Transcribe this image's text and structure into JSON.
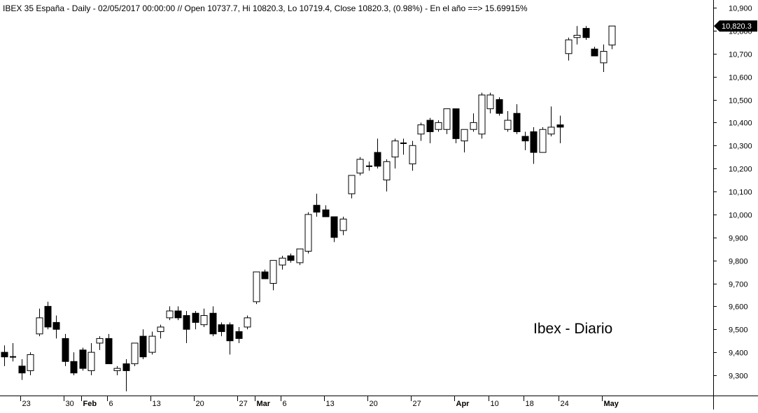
{
  "chart_data": {
    "type": "candlestick",
    "header": "IBEX 35 España - Daily - 02/05/2017 00:00:00 // Open 10737.7, Hi 10820.3, Lo 10719.4, Close 10820.3, (0.98%) - En el año ==> 15.69915%",
    "annotation": "Ibex - Diario",
    "last_value_label": "10,820.3",
    "last_value": 10820.3,
    "ylim": [
      9230,
      10920
    ],
    "y_ticks": [
      {
        "value": 9300,
        "label": "9,300"
      },
      {
        "value": 9400,
        "label": "9,400"
      },
      {
        "value": 9500,
        "label": "9,500"
      },
      {
        "value": 9600,
        "label": "9,600"
      },
      {
        "value": 9700,
        "label": "9,700"
      },
      {
        "value": 9800,
        "label": "9,800"
      },
      {
        "value": 9900,
        "label": "9,900"
      },
      {
        "value": 10000,
        "label": "10,000"
      },
      {
        "value": 10100,
        "label": "10,100"
      },
      {
        "value": 10200,
        "label": "10,200"
      },
      {
        "value": 10300,
        "label": "10,300"
      },
      {
        "value": 10400,
        "label": "10,400"
      },
      {
        "value": 10500,
        "label": "10,500"
      },
      {
        "value": 10600,
        "label": "10,600"
      },
      {
        "value": 10700,
        "label": "10,700"
      },
      {
        "value": 10800,
        "label": "10,800"
      },
      {
        "value": 10900,
        "label": "10,900"
      }
    ],
    "x_ticks": [
      {
        "index": 2,
        "label": "23",
        "bold": false
      },
      {
        "index": 7,
        "label": "30",
        "bold": false
      },
      {
        "index": 9,
        "label": "Feb",
        "bold": true
      },
      {
        "index": 12,
        "label": "6",
        "bold": false
      },
      {
        "index": 17,
        "label": "13",
        "bold": false
      },
      {
        "index": 22,
        "label": "20",
        "bold": false
      },
      {
        "index": 27,
        "label": "27",
        "bold": false
      },
      {
        "index": 29,
        "label": "Mar",
        "bold": true
      },
      {
        "index": 32,
        "label": "6",
        "bold": false
      },
      {
        "index": 37,
        "label": "13",
        "bold": false
      },
      {
        "index": 42,
        "label": "20",
        "bold": false
      },
      {
        "index": 47,
        "label": "27",
        "bold": false
      },
      {
        "index": 52,
        "label": "Apr",
        "bold": true
      },
      {
        "index": 56,
        "label": "10",
        "bold": false
      },
      {
        "index": 60,
        "label": "18",
        "bold": false
      },
      {
        "index": 64,
        "label": "24",
        "bold": false
      },
      {
        "index": 69,
        "label": "May",
        "bold": true
      }
    ],
    "candles": [
      {
        "open": 9400,
        "high": 9430,
        "low": 9340,
        "close": 9380
      },
      {
        "open": 9380,
        "high": 9440,
        "low": 9360,
        "close": 9380
      },
      {
        "open": 9340,
        "high": 9370,
        "low": 9280,
        "close": 9310
      },
      {
        "open": 9320,
        "high": 9400,
        "low": 9300,
        "close": 9390
      },
      {
        "open": 9480,
        "high": 9590,
        "low": 9470,
        "close": 9550
      },
      {
        "open": 9600,
        "high": 9620,
        "low": 9500,
        "close": 9510
      },
      {
        "open": 9530,
        "high": 9560,
        "low": 9460,
        "close": 9500
      },
      {
        "open": 9460,
        "high": 9480,
        "low": 9340,
        "close": 9360
      },
      {
        "open": 9360,
        "high": 9400,
        "low": 9300,
        "close": 9310
      },
      {
        "open": 9410,
        "high": 9420,
        "low": 9320,
        "close": 9330
      },
      {
        "open": 9320,
        "high": 9440,
        "low": 9300,
        "close": 9400
      },
      {
        "open": 9440,
        "high": 9470,
        "low": 9410,
        "close": 9460
      },
      {
        "open": 9460,
        "high": 9480,
        "low": 9360,
        "close": 9350
      },
      {
        "open": 9320,
        "high": 9340,
        "low": 9300,
        "close": 9330
      },
      {
        "open": 9350,
        "high": 9370,
        "low": 9230,
        "close": 9320
      },
      {
        "open": 9350,
        "high": 9440,
        "low": 9340,
        "close": 9440
      },
      {
        "open": 9470,
        "high": 9500,
        "low": 9370,
        "close": 9380
      },
      {
        "open": 9400,
        "high": 9490,
        "low": 9390,
        "close": 9470
      },
      {
        "open": 9490,
        "high": 9520,
        "low": 9460,
        "close": 9510
      },
      {
        "open": 9550,
        "high": 9600,
        "low": 9540,
        "close": 9580
      },
      {
        "open": 9580,
        "high": 9600,
        "low": 9540,
        "close": 9550
      },
      {
        "open": 9560,
        "high": 9580,
        "low": 9440,
        "close": 9500
      },
      {
        "open": 9570,
        "high": 9580,
        "low": 9500,
        "close": 9530
      },
      {
        "open": 9520,
        "high": 9590,
        "low": 9510,
        "close": 9560
      },
      {
        "open": 9570,
        "high": 9600,
        "low": 9470,
        "close": 9480
      },
      {
        "open": 9520,
        "high": 9530,
        "low": 9470,
        "close": 9490
      },
      {
        "open": 9520,
        "high": 9530,
        "low": 9390,
        "close": 9450
      },
      {
        "open": 9490,
        "high": 9510,
        "low": 9440,
        "close": 9460
      },
      {
        "open": 9510,
        "high": 9560,
        "low": 9500,
        "close": 9550
      },
      {
        "open": 9620,
        "high": 9750,
        "low": 9610,
        "close": 9750
      },
      {
        "open": 9750,
        "high": 9760,
        "low": 9720,
        "close": 9720
      },
      {
        "open": 9700,
        "high": 9800,
        "low": 9670,
        "close": 9800
      },
      {
        "open": 9780,
        "high": 9820,
        "low": 9760,
        "close": 9810
      },
      {
        "open": 9820,
        "high": 9830,
        "low": 9790,
        "close": 9800
      },
      {
        "open": 9790,
        "high": 9850,
        "low": 9780,
        "close": 9850
      },
      {
        "open": 9840,
        "high": 10010,
        "low": 9830,
        "close": 10000
      },
      {
        "open": 10040,
        "high": 10090,
        "low": 9990,
        "close": 10010
      },
      {
        "open": 10020,
        "high": 10040,
        "low": 9990,
        "close": 9990
      },
      {
        "open": 9990,
        "high": 9990,
        "low": 9880,
        "close": 9900
      },
      {
        "open": 9930,
        "high": 9990,
        "low": 9910,
        "close": 9980
      },
      {
        "open": 10090,
        "high": 10170,
        "low": 10070,
        "close": 10170
      },
      {
        "open": 10180,
        "high": 10250,
        "low": 10170,
        "close": 10240
      },
      {
        "open": 10210,
        "high": 10230,
        "low": 10190,
        "close": 10210
      },
      {
        "open": 10270,
        "high": 10330,
        "low": 10200,
        "close": 10210
      },
      {
        "open": 10150,
        "high": 10240,
        "low": 10100,
        "close": 10230
      },
      {
        "open": 10250,
        "high": 10330,
        "low": 10200,
        "close": 10320
      },
      {
        "open": 10310,
        "high": 10330,
        "low": 10260,
        "close": 10310
      },
      {
        "open": 10220,
        "high": 10320,
        "low": 10190,
        "close": 10300
      },
      {
        "open": 10350,
        "high": 10400,
        "low": 10320,
        "close": 10390
      },
      {
        "open": 10410,
        "high": 10420,
        "low": 10310,
        "close": 10360
      },
      {
        "open": 10370,
        "high": 10410,
        "low": 10360,
        "close": 10400
      },
      {
        "open": 10370,
        "high": 10460,
        "low": 10350,
        "close": 10460
      },
      {
        "open": 10460,
        "high": 10460,
        "low": 10310,
        "close": 10330
      },
      {
        "open": 10320,
        "high": 10370,
        "low": 10270,
        "close": 10370
      },
      {
        "open": 10370,
        "high": 10440,
        "low": 10360,
        "close": 10400
      },
      {
        "open": 10350,
        "high": 10530,
        "low": 10330,
        "close": 10520
      },
      {
        "open": 10460,
        "high": 10530,
        "low": 10440,
        "close": 10520
      },
      {
        "open": 10500,
        "high": 10510,
        "low": 10430,
        "close": 10440
      },
      {
        "open": 10370,
        "high": 10450,
        "low": 10360,
        "close": 10410
      },
      {
        "open": 10440,
        "high": 10480,
        "low": 10350,
        "close": 10360
      },
      {
        "open": 10340,
        "high": 10360,
        "low": 10280,
        "close": 10320
      },
      {
        "open": 10360,
        "high": 10380,
        "low": 10220,
        "close": 10270
      },
      {
        "open": 10270,
        "high": 10380,
        "low": 10270,
        "close": 10370
      },
      {
        "open": 10350,
        "high": 10470,
        "low": 10340,
        "close": 10380
      },
      {
        "open": 10390,
        "high": 10430,
        "low": 10310,
        "close": 10380
      },
      {
        "open": 10700,
        "high": 10770,
        "low": 10670,
        "close": 10760
      },
      {
        "open": 10770,
        "high": 10820,
        "low": 10740,
        "close": 10780
      },
      {
        "open": 10810,
        "high": 10820,
        "low": 10760,
        "close": 10770
      },
      {
        "open": 10720,
        "high": 10730,
        "low": 10690,
        "close": 10690
      },
      {
        "open": 10660,
        "high": 10740,
        "low": 10620,
        "close": 10710
      },
      {
        "open": 10737.7,
        "high": 10820.3,
        "low": 10719.4,
        "close": 10820.3
      }
    ]
  }
}
